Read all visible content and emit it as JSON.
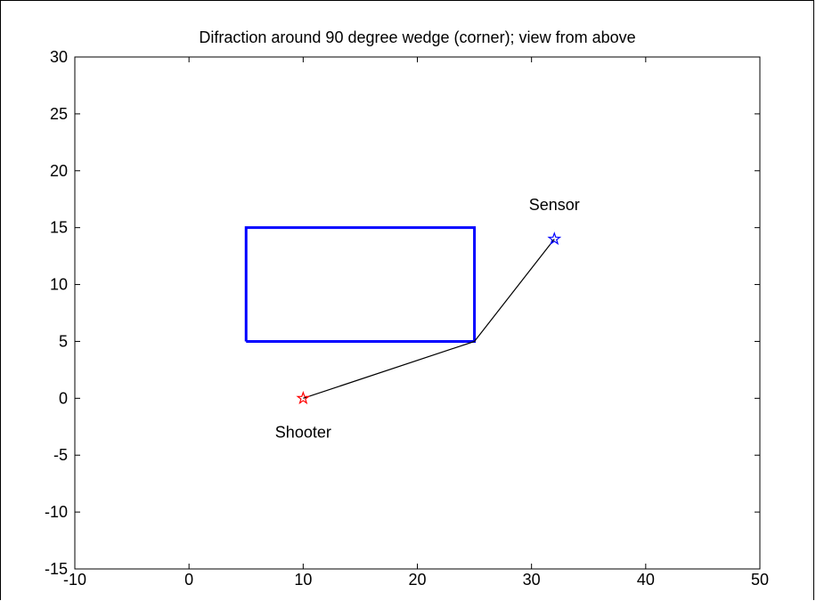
{
  "chart_data": {
    "type": "line",
    "title": "Difraction around 90 degree wedge (corner); view from above",
    "xlabel": "",
    "ylabel": "",
    "xlim": [
      -10,
      50
    ],
    "ylim": [
      -15,
      30
    ],
    "xticks": [
      -10,
      0,
      10,
      20,
      30,
      40,
      50
    ],
    "yticks": [
      -15,
      -10,
      -5,
      0,
      5,
      10,
      15,
      20,
      25,
      30
    ],
    "grid": false,
    "series": [
      {
        "kind": "rectangle",
        "color": "#0000ff",
        "x": [
          5,
          25,
          25,
          5,
          5
        ],
        "y": [
          5,
          5,
          15,
          15,
          5
        ]
      },
      {
        "kind": "path",
        "color": "#000000",
        "x": [
          10,
          25,
          32
        ],
        "y": [
          0,
          5,
          14
        ]
      }
    ],
    "markers": [
      {
        "label": "Shooter",
        "x": 10,
        "y": 0,
        "color": "#ff0000",
        "symbol": "pentagram"
      },
      {
        "label": "Sensor",
        "x": 32,
        "y": 14,
        "color": "#0000ff",
        "symbol": "pentagram"
      }
    ],
    "annotations": [
      {
        "text": "Sensor",
        "x": 32,
        "y": 17
      },
      {
        "text": "Shooter",
        "x": 10,
        "y": -3
      }
    ]
  }
}
